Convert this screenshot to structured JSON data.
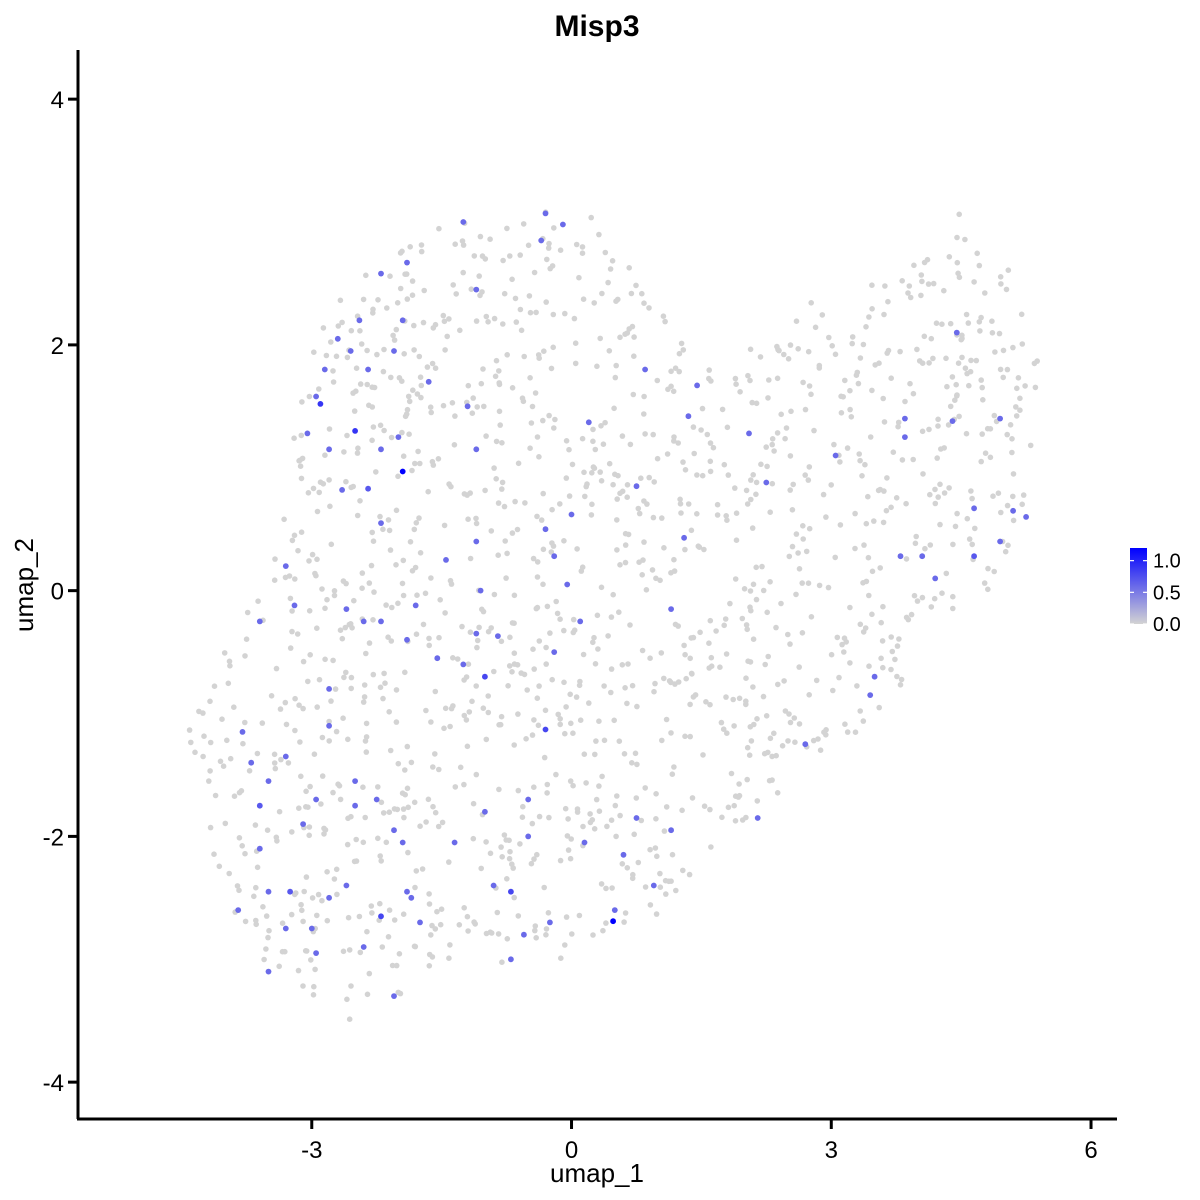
{
  "chart_data": {
    "type": "scatter",
    "title": "Misp3",
    "xlabel": "umap_1",
    "ylabel": "umap_2",
    "xlim": [
      -5.7,
      6.3
    ],
    "ylim": [
      -4.3,
      4.4
    ],
    "x_ticks": [
      -3,
      0,
      3,
      6
    ],
    "y_ticks": [
      -4,
      -2,
      0,
      2,
      4
    ],
    "x_tick_labels": [
      "-3",
      "0",
      "3",
      "6"
    ],
    "y_tick_labels": [
      "-4",
      "-2",
      "0",
      "2",
      "4"
    ],
    "grid": false,
    "legend": {
      "placement": "right",
      "type": "colorbar",
      "range": [
        0,
        1.2
      ],
      "ticks": [
        0.0,
        0.5,
        1.0
      ],
      "tick_labels": [
        "0.0",
        "0.5",
        "1.0"
      ],
      "low_color": "#d3d3d3",
      "high_color": "#0000ff"
    },
    "background_points": {
      "count": 1500,
      "color": "#d3d3d3",
      "value": 0,
      "region_polygon": [
        [
          -4.9,
          -1.3
        ],
        [
          -4.3,
          -1.5
        ],
        [
          -4.2,
          -2.2
        ],
        [
          -3.6,
          -3.0
        ],
        [
          -3.0,
          -3.3
        ],
        [
          -2.6,
          -3.5
        ],
        [
          -2.1,
          -3.4
        ],
        [
          -1.4,
          -3.1
        ],
        [
          -0.6,
          -3.0
        ],
        [
          0.2,
          -3.0
        ],
        [
          0.8,
          -2.8
        ],
        [
          1.4,
          -2.3
        ],
        [
          2.2,
          -1.8
        ],
        [
          2.8,
          -1.4
        ],
        [
          3.4,
          -1.1
        ],
        [
          4.0,
          -0.6
        ],
        [
          4.5,
          -0.2
        ],
        [
          5.0,
          0.1
        ],
        [
          5.4,
          0.8
        ],
        [
          5.4,
          2.0
        ],
        [
          5.2,
          2.5
        ],
        [
          4.8,
          2.8
        ],
        [
          4.5,
          3.1
        ],
        [
          4.2,
          2.8
        ],
        [
          3.6,
          2.6
        ],
        [
          3.0,
          2.5
        ],
        [
          2.4,
          2.1
        ],
        [
          1.6,
          1.8
        ],
        [
          1.0,
          2.3
        ],
        [
          0.2,
          3.1
        ],
        [
          -0.6,
          3.1
        ],
        [
          -1.4,
          3.0
        ],
        [
          -2.0,
          2.8
        ],
        [
          -2.4,
          2.6
        ],
        [
          -2.8,
          2.3
        ],
        [
          -3.1,
          1.8
        ],
        [
          -3.3,
          1.0
        ],
        [
          -3.6,
          0.2
        ],
        [
          -3.8,
          -0.3
        ],
        [
          -4.2,
          -0.7
        ],
        [
          -4.6,
          -1.0
        ]
      ]
    },
    "expressing_points": [
      {
        "x": -1.95,
        "y": 0.97,
        "value": 1.2
      },
      {
        "x": 0.48,
        "y": -2.69,
        "value": 1.2
      },
      {
        "x": -2.5,
        "y": 1.3,
        "value": 0.9
      },
      {
        "x": -2.9,
        "y": 1.52,
        "value": 0.9
      },
      {
        "x": -2.2,
        "y": -2.65,
        "value": 0.8
      },
      {
        "x": -0.7,
        "y": -2.45,
        "value": 0.8
      },
      {
        "x": -0.3,
        "y": -1.13,
        "value": 0.8
      },
      {
        "x": -1.0,
        "y": -0.7,
        "value": 0.8
      },
      {
        "x": -3.6,
        "y": -1.75,
        "value": 0.7
      },
      {
        "x": -2.35,
        "y": 0.83,
        "value": 0.7
      },
      {
        "x": -3.25,
        "y": -2.45,
        "value": 0.7
      },
      {
        "x": 4.65,
        "y": 0.28,
        "value": 0.7
      },
      {
        "x": -2.55,
        "y": 1.95,
        "value": 0.6
      },
      {
        "x": -2.7,
        "y": 2.05,
        "value": 0.6
      },
      {
        "x": -2.2,
        "y": 2.58,
        "value": 0.6
      },
      {
        "x": -1.9,
        "y": 2.67,
        "value": 0.6
      },
      {
        "x": -2.05,
        "y": 1.95,
        "value": 0.6
      },
      {
        "x": -2.35,
        "y": 1.8,
        "value": 0.6
      },
      {
        "x": -1.65,
        "y": 1.7,
        "value": 0.6
      },
      {
        "x": -1.25,
        "y": 3.0,
        "value": 0.6
      },
      {
        "x": -0.3,
        "y": 3.07,
        "value": 0.6
      },
      {
        "x": -0.35,
        "y": 2.85,
        "value": 0.6
      },
      {
        "x": -0.1,
        "y": 2.98,
        "value": 0.6
      },
      {
        "x": -1.1,
        "y": 2.45,
        "value": 0.6
      },
      {
        "x": -1.95,
        "y": 2.2,
        "value": 0.6
      },
      {
        "x": -2.45,
        "y": 2.2,
        "value": 0.6
      },
      {
        "x": -2.95,
        "y": 1.58,
        "value": 0.6
      },
      {
        "x": -2.85,
        "y": 1.8,
        "value": 0.6
      },
      {
        "x": -3.05,
        "y": 1.28,
        "value": 0.6
      },
      {
        "x": -2.8,
        "y": 1.15,
        "value": 0.6
      },
      {
        "x": -2.2,
        "y": 1.15,
        "value": 0.6
      },
      {
        "x": -2.0,
        "y": 1.25,
        "value": 0.6
      },
      {
        "x": -2.65,
        "y": 0.82,
        "value": 0.6
      },
      {
        "x": -2.2,
        "y": 0.55,
        "value": 0.6
      },
      {
        "x": -1.2,
        "y": 1.5,
        "value": 0.6
      },
      {
        "x": -1.1,
        "y": 1.15,
        "value": 0.6
      },
      {
        "x": 0.85,
        "y": 1.8,
        "value": 0.6
      },
      {
        "x": 0.2,
        "y": 1.37,
        "value": 0.6
      },
      {
        "x": 1.45,
        "y": 1.67,
        "value": 0.6
      },
      {
        "x": 1.35,
        "y": 1.42,
        "value": 0.6
      },
      {
        "x": 2.05,
        "y": 1.28,
        "value": 0.6
      },
      {
        "x": 3.05,
        "y": 1.1,
        "value": 0.6
      },
      {
        "x": 3.85,
        "y": 1.4,
        "value": 0.6
      },
      {
        "x": 3.85,
        "y": 1.25,
        "value": 0.6
      },
      {
        "x": 4.45,
        "y": 2.1,
        "value": 0.6
      },
      {
        "x": 4.4,
        "y": 1.38,
        "value": 0.6
      },
      {
        "x": 4.95,
        "y": 1.4,
        "value": 0.6
      },
      {
        "x": 4.65,
        "y": 0.67,
        "value": 0.6
      },
      {
        "x": 5.1,
        "y": 0.65,
        "value": 0.6
      },
      {
        "x": 5.25,
        "y": 0.6,
        "value": 0.6
      },
      {
        "x": 4.95,
        "y": 0.4,
        "value": 0.6
      },
      {
        "x": 4.05,
        "y": 0.28,
        "value": 0.6
      },
      {
        "x": 4.2,
        "y": 0.1,
        "value": 0.6
      },
      {
        "x": 3.8,
        "y": 0.28,
        "value": 0.6
      },
      {
        "x": 2.25,
        "y": 0.88,
        "value": 0.6
      },
      {
        "x": 0.75,
        "y": 0.85,
        "value": 0.6
      },
      {
        "x": 0.0,
        "y": 0.62,
        "value": 0.6
      },
      {
        "x": -0.3,
        "y": 0.5,
        "value": 0.6
      },
      {
        "x": 1.3,
        "y": 0.43,
        "value": 0.6
      },
      {
        "x": -1.1,
        "y": 0.4,
        "value": 0.6
      },
      {
        "x": -1.45,
        "y": 0.25,
        "value": 0.6
      },
      {
        "x": -0.2,
        "y": 0.28,
        "value": 0.6
      },
      {
        "x": -0.05,
        "y": 0.05,
        "value": 0.6
      },
      {
        "x": -1.05,
        "y": 0.0,
        "value": 0.6
      },
      {
        "x": -1.1,
        "y": -0.35,
        "value": 0.6
      },
      {
        "x": -1.25,
        "y": -0.6,
        "value": 0.6
      },
      {
        "x": -0.85,
        "y": -0.37,
        "value": 0.6
      },
      {
        "x": 1.15,
        "y": -0.15,
        "value": 0.6
      },
      {
        "x": 0.1,
        "y": -0.25,
        "value": 0.6
      },
      {
        "x": -0.2,
        "y": -0.5,
        "value": 0.6
      },
      {
        "x": -1.8,
        "y": -0.12,
        "value": 0.6
      },
      {
        "x": -1.9,
        "y": -0.4,
        "value": 0.6
      },
      {
        "x": -1.55,
        "y": -0.55,
        "value": 0.6
      },
      {
        "x": -2.2,
        "y": -0.25,
        "value": 0.6
      },
      {
        "x": -2.8,
        "y": -0.8,
        "value": 0.6
      },
      {
        "x": -2.8,
        "y": -1.1,
        "value": 0.6
      },
      {
        "x": -3.2,
        "y": -0.12,
        "value": 0.6
      },
      {
        "x": -3.3,
        "y": 0.2,
        "value": 0.6
      },
      {
        "x": -3.6,
        "y": -0.25,
        "value": 0.6
      },
      {
        "x": -2.6,
        "y": -0.15,
        "value": 0.6
      },
      {
        "x": -3.8,
        "y": -1.15,
        "value": 0.6
      },
      {
        "x": -3.7,
        "y": -1.4,
        "value": 0.6
      },
      {
        "x": -3.3,
        "y": -1.35,
        "value": 0.6
      },
      {
        "x": -3.5,
        "y": -1.55,
        "value": 0.6
      },
      {
        "x": -3.6,
        "y": -2.1,
        "value": 0.6
      },
      {
        "x": -3.3,
        "y": -2.75,
        "value": 0.6
      },
      {
        "x": -3.0,
        "y": -2.75,
        "value": 0.6
      },
      {
        "x": -2.8,
        "y": -2.5,
        "value": 0.6
      },
      {
        "x": -2.6,
        "y": -2.4,
        "value": 0.6
      },
      {
        "x": -2.95,
        "y": -2.95,
        "value": 0.6
      },
      {
        "x": -2.4,
        "y": -2.9,
        "value": 0.6
      },
      {
        "x": -2.05,
        "y": -3.3,
        "value": 0.6
      },
      {
        "x": -3.5,
        "y": -3.1,
        "value": 0.6
      },
      {
        "x": -1.75,
        "y": -2.7,
        "value": 0.6
      },
      {
        "x": -1.85,
        "y": -2.5,
        "value": 0.6
      },
      {
        "x": -2.05,
        "y": -1.95,
        "value": 0.6
      },
      {
        "x": -1.95,
        "y": -2.05,
        "value": 0.6
      },
      {
        "x": -2.25,
        "y": -1.7,
        "value": 0.6
      },
      {
        "x": -2.5,
        "y": -1.55,
        "value": 0.6
      },
      {
        "x": -2.95,
        "y": -1.7,
        "value": 0.6
      },
      {
        "x": -3.1,
        "y": -1.9,
        "value": 0.6
      },
      {
        "x": -1.35,
        "y": -2.05,
        "value": 0.6
      },
      {
        "x": -1.0,
        "y": -1.8,
        "value": 0.6
      },
      {
        "x": -0.5,
        "y": -2.0,
        "value": 0.6
      },
      {
        "x": -0.5,
        "y": -1.7,
        "value": 0.6
      },
      {
        "x": 0.15,
        "y": -2.05,
        "value": 0.6
      },
      {
        "x": 0.6,
        "y": -2.15,
        "value": 0.6
      },
      {
        "x": 0.75,
        "y": -1.85,
        "value": 0.6
      },
      {
        "x": 1.15,
        "y": -1.95,
        "value": 0.6
      },
      {
        "x": 0.95,
        "y": -2.4,
        "value": 0.6
      },
      {
        "x": 0.5,
        "y": -2.6,
        "value": 0.6
      },
      {
        "x": -0.25,
        "y": -2.7,
        "value": 0.6
      },
      {
        "x": -0.55,
        "y": -2.8,
        "value": 0.6
      },
      {
        "x": -0.7,
        "y": -3.0,
        "value": 0.6
      },
      {
        "x": -0.9,
        "y": -2.4,
        "value": 0.6
      },
      {
        "x": 2.15,
        "y": -1.85,
        "value": 0.6
      },
      {
        "x": 2.7,
        "y": -1.25,
        "value": 0.6
      },
      {
        "x": 3.45,
        "y": -0.85,
        "value": 0.6
      },
      {
        "x": 3.5,
        "y": -0.7,
        "value": 0.6
      },
      {
        "x": -2.4,
        "y": -0.25,
        "value": 0.6
      },
      {
        "x": -3.5,
        "y": -2.45,
        "value": 0.6
      },
      {
        "x": -2.5,
        "y": -1.75,
        "value": 0.6
      },
      {
        "x": -1.9,
        "y": -2.45,
        "value": 0.6
      },
      {
        "x": -3.85,
        "y": -2.6,
        "value": 0.6
      }
    ]
  }
}
